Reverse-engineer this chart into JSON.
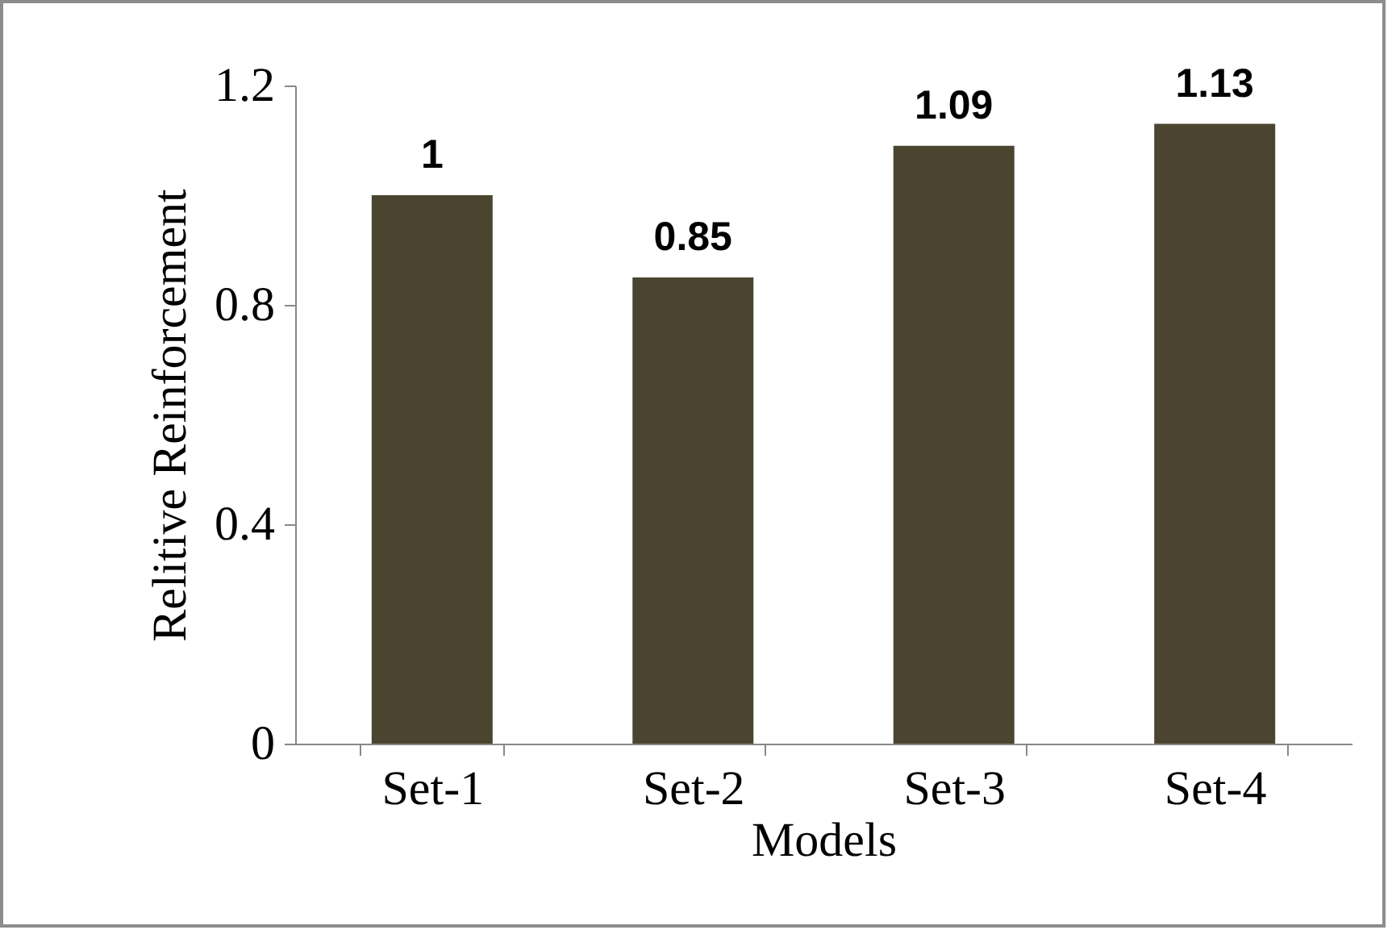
{
  "chart_data": {
    "type": "bar",
    "xlabel": "Models",
    "ylabel": "Relitive Reinforcement",
    "categories": [
      "Set-1",
      "Set-2",
      "Set-3",
      "Set-4"
    ],
    "values": [
      1,
      0.85,
      1.09,
      1.13
    ],
    "color": "#4b4530",
    "ylim": [
      0,
      1.2
    ],
    "yticks": [
      0,
      0.4,
      0.8,
      1.2
    ],
    "grid": false,
    "data_labels": true
  }
}
